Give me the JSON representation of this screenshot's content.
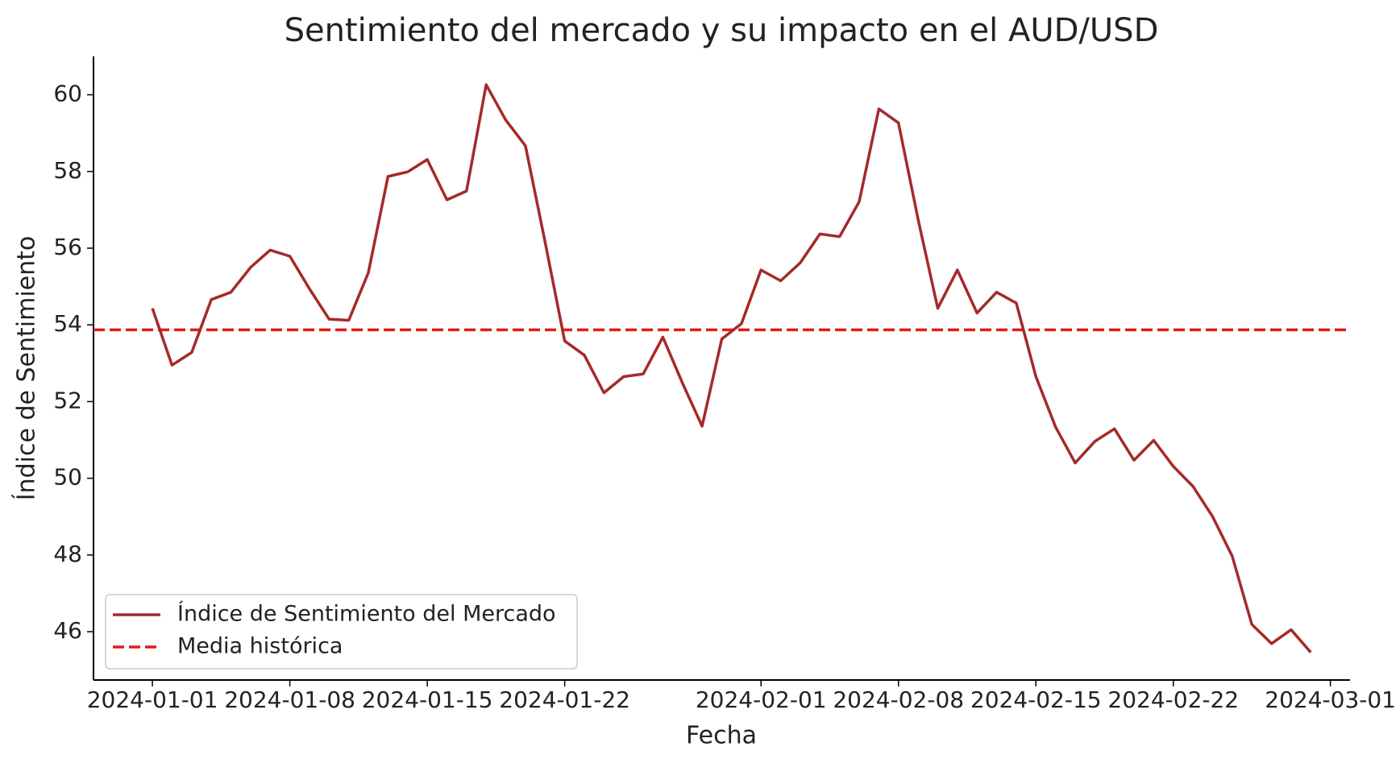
{
  "chart_data": {
    "type": "line",
    "title": "Sentimiento del mercado y su impacto en el AUD/USD",
    "xlabel": "Fecha",
    "ylabel": "Índice de Sentimiento",
    "x": [
      "2024-01-01",
      "2024-01-02",
      "2024-01-03",
      "2024-01-04",
      "2024-01-05",
      "2024-01-06",
      "2024-01-07",
      "2024-01-08",
      "2024-01-09",
      "2024-01-10",
      "2024-01-11",
      "2024-01-12",
      "2024-01-13",
      "2024-01-14",
      "2024-01-15",
      "2024-01-16",
      "2024-01-17",
      "2024-01-18",
      "2024-01-19",
      "2024-01-20",
      "2024-01-21",
      "2024-01-22",
      "2024-01-23",
      "2024-01-24",
      "2024-01-25",
      "2024-01-26",
      "2024-01-27",
      "2024-01-28",
      "2024-01-29",
      "2024-01-30",
      "2024-01-31",
      "2024-02-01",
      "2024-02-02",
      "2024-02-03",
      "2024-02-04",
      "2024-02-05",
      "2024-02-06",
      "2024-02-07",
      "2024-02-08",
      "2024-02-09",
      "2024-02-10",
      "2024-02-11",
      "2024-02-12",
      "2024-02-13",
      "2024-02-14",
      "2024-02-15",
      "2024-02-16",
      "2024-02-17",
      "2024-02-18",
      "2024-02-19",
      "2024-02-20",
      "2024-02-21",
      "2024-02-22",
      "2024-02-23",
      "2024-02-24",
      "2024-02-25",
      "2024-02-26",
      "2024-02-27",
      "2024-02-28",
      "2024-02-29"
    ],
    "series": [
      {
        "name": "Índice de Sentimiento del Mercado",
        "color": "#a52a2a",
        "values": [
          54.43,
          52.95,
          53.28,
          54.66,
          54.85,
          55.5,
          55.95,
          55.79,
          54.94,
          54.15,
          54.12,
          55.36,
          57.87,
          57.99,
          58.31,
          57.26,
          57.49,
          60.26,
          59.34,
          58.67,
          56.16,
          53.58,
          53.21,
          52.23,
          52.65,
          52.72,
          53.68,
          52.48,
          51.36,
          53.63,
          54.03,
          55.43,
          55.15,
          55.62,
          56.37,
          56.3,
          57.21,
          59.63,
          59.27,
          56.75,
          54.43,
          55.43,
          54.31,
          54.85,
          54.57,
          52.65,
          51.34,
          50.4,
          50.96,
          51.29,
          50.47,
          50.99,
          50.31,
          49.79,
          49.0,
          47.97,
          46.19,
          45.69,
          46.05,
          45.46
        ]
      }
    ],
    "hline": {
      "name": "Media histórica",
      "value": 53.87,
      "color": "#e41a1c",
      "style": "dashed"
    },
    "xlim": [
      "2023-12-29",
      "2024-03-02"
    ],
    "xticks": [
      "2024-01-01",
      "2024-01-08",
      "2024-01-15",
      "2024-01-22",
      "2024-02-01",
      "2024-02-08",
      "2024-02-15",
      "2024-02-22",
      "2024-03-01"
    ],
    "ylim": [
      44.74,
      61.0
    ],
    "yticks": [
      46,
      48,
      50,
      52,
      54,
      56,
      58,
      60
    ],
    "legend": "lower left",
    "grid": false
  }
}
